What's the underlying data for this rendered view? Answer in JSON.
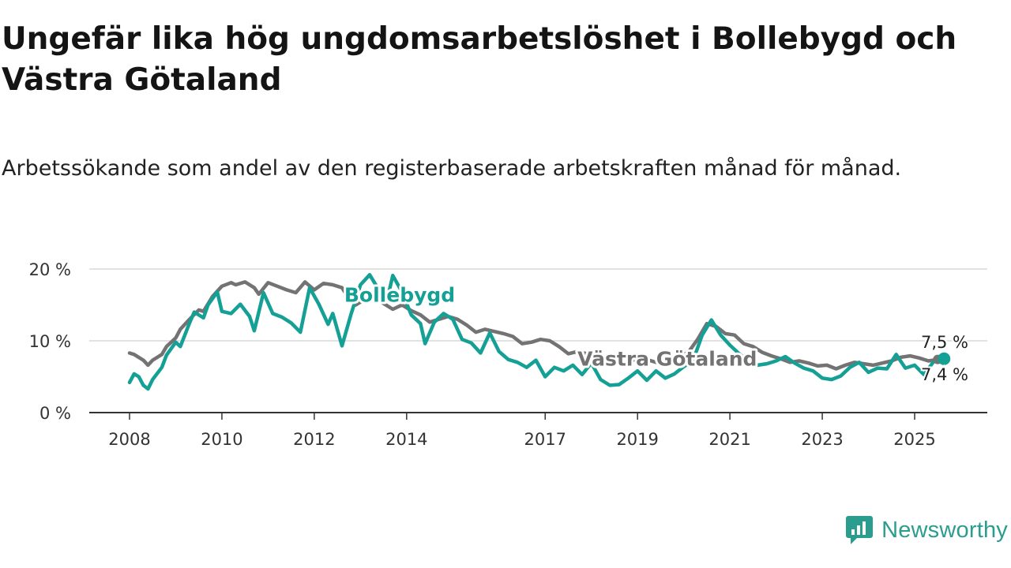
{
  "title": "Ungefär lika hög ungdomsarbetslöshet i Bollebygd och Västra Götaland",
  "subtitle": "Arbetssökande som andel av den registerbaserade arbetskraften månad för månad.",
  "brand": {
    "name": "Newsworthy",
    "icon": "newsworthy-logo-icon",
    "color": "#2a9d8f"
  },
  "chart_data": {
    "type": "line",
    "title": "Ungefär lika hög ungdomsarbetslöshet i Bollebygd och Västra Götaland",
    "subtitle": "Arbetssökande som andel av den registerbaserade arbetskraften månad för månad.",
    "xlabel": "",
    "ylabel": "",
    "xlim": [
      2007.9,
      2025.8
    ],
    "ylim": [
      0,
      20
    ],
    "x_ticks": [
      2008,
      2010,
      2012,
      2014,
      2017,
      2019,
      2021,
      2023,
      2025
    ],
    "x_tick_labels": [
      "2008",
      "2010",
      "2012",
      "2014",
      "2017",
      "2019",
      "2021",
      "2023",
      "2025"
    ],
    "y_ticks": [
      0,
      10,
      20
    ],
    "y_tick_labels": [
      "0 %",
      "10 %",
      "20 %"
    ],
    "grid": "horizontal",
    "series": [
      {
        "name": "Västra Götaland",
        "color": "#737373",
        "label": "Västra Götaland",
        "end_label": "7,4 %",
        "points": [
          [
            2008.0,
            8.3
          ],
          [
            2008.1,
            8.1
          ],
          [
            2008.3,
            7.3
          ],
          [
            2008.4,
            6.6
          ],
          [
            2008.5,
            7.3
          ],
          [
            2008.7,
            8.1
          ],
          [
            2008.8,
            9.2
          ],
          [
            2009.0,
            10.4
          ],
          [
            2009.1,
            11.6
          ],
          [
            2009.3,
            13.0
          ],
          [
            2009.5,
            14.3
          ],
          [
            2009.6,
            14.1
          ],
          [
            2009.8,
            16.2
          ],
          [
            2010.0,
            17.6
          ],
          [
            2010.2,
            18.1
          ],
          [
            2010.3,
            17.8
          ],
          [
            2010.5,
            18.2
          ],
          [
            2010.7,
            17.4
          ],
          [
            2010.8,
            16.5
          ],
          [
            2011.0,
            18.1
          ],
          [
            2011.2,
            17.6
          ],
          [
            2011.4,
            17.1
          ],
          [
            2011.6,
            16.7
          ],
          [
            2011.8,
            18.2
          ],
          [
            2012.0,
            17.1
          ],
          [
            2012.2,
            18.0
          ],
          [
            2012.4,
            17.8
          ],
          [
            2012.6,
            17.4
          ],
          [
            2012.7,
            16.4
          ],
          [
            2012.9,
            15.0
          ],
          [
            2013.1,
            15.8
          ],
          [
            2013.3,
            16.0
          ],
          [
            2013.5,
            15.2
          ],
          [
            2013.7,
            14.4
          ],
          [
            2013.9,
            15.0
          ],
          [
            2014.1,
            14.2
          ],
          [
            2014.3,
            13.6
          ],
          [
            2014.5,
            12.6
          ],
          [
            2014.7,
            13.0
          ],
          [
            2014.9,
            13.4
          ],
          [
            2015.1,
            13.0
          ],
          [
            2015.3,
            12.2
          ],
          [
            2015.5,
            11.2
          ],
          [
            2015.7,
            11.6
          ],
          [
            2015.9,
            11.3
          ],
          [
            2016.1,
            11.0
          ],
          [
            2016.3,
            10.6
          ],
          [
            2016.5,
            9.6
          ],
          [
            2016.7,
            9.8
          ],
          [
            2016.9,
            10.2
          ],
          [
            2017.1,
            10.0
          ],
          [
            2017.3,
            9.2
          ],
          [
            2017.5,
            8.2
          ],
          [
            2017.7,
            8.5
          ],
          [
            2017.9,
            8.2
          ],
          [
            2018.1,
            7.8
          ],
          [
            2018.3,
            7.6
          ],
          [
            2018.5,
            7.5
          ],
          [
            2018.7,
            7.8
          ],
          [
            2018.9,
            7.3
          ],
          [
            2019.1,
            7.5
          ],
          [
            2019.3,
            7.2
          ],
          [
            2019.5,
            6.8
          ],
          [
            2019.7,
            7.2
          ],
          [
            2019.9,
            7.8
          ],
          [
            2020.1,
            8.4
          ],
          [
            2020.3,
            10.2
          ],
          [
            2020.5,
            12.4
          ],
          [
            2020.7,
            12.0
          ],
          [
            2020.9,
            11.0
          ],
          [
            2021.1,
            10.8
          ],
          [
            2021.3,
            9.6
          ],
          [
            2021.5,
            9.2
          ],
          [
            2021.7,
            8.4
          ],
          [
            2021.9,
            7.9
          ],
          [
            2022.1,
            7.5
          ],
          [
            2022.3,
            7.0
          ],
          [
            2022.5,
            7.2
          ],
          [
            2022.7,
            6.9
          ],
          [
            2022.9,
            6.5
          ],
          [
            2023.1,
            6.6
          ],
          [
            2023.3,
            6.1
          ],
          [
            2023.5,
            6.6
          ],
          [
            2023.7,
            7.0
          ],
          [
            2023.9,
            6.8
          ],
          [
            2024.1,
            6.6
          ],
          [
            2024.3,
            6.9
          ],
          [
            2024.5,
            7.2
          ],
          [
            2024.7,
            7.7
          ],
          [
            2024.9,
            7.9
          ],
          [
            2025.1,
            7.6
          ],
          [
            2025.3,
            7.2
          ],
          [
            2025.5,
            7.4
          ]
        ]
      },
      {
        "name": "Bollebygd",
        "color": "#14a095",
        "label": "Bollebygd",
        "end_label": "7,5 %",
        "points": [
          [
            2008.0,
            4.2
          ],
          [
            2008.1,
            5.4
          ],
          [
            2008.2,
            5.0
          ],
          [
            2008.3,
            3.8
          ],
          [
            2008.4,
            3.3
          ],
          [
            2008.5,
            4.6
          ],
          [
            2008.7,
            6.3
          ],
          [
            2008.8,
            8.0
          ],
          [
            2009.0,
            9.8
          ],
          [
            2009.1,
            9.2
          ],
          [
            2009.3,
            12.5
          ],
          [
            2009.4,
            14.0
          ],
          [
            2009.6,
            13.2
          ],
          [
            2009.7,
            15.0
          ],
          [
            2009.9,
            16.8
          ],
          [
            2010.0,
            14.1
          ],
          [
            2010.2,
            13.8
          ],
          [
            2010.4,
            15.1
          ],
          [
            2010.6,
            13.4
          ],
          [
            2010.7,
            11.4
          ],
          [
            2010.9,
            16.7
          ],
          [
            2011.1,
            13.8
          ],
          [
            2011.3,
            13.3
          ],
          [
            2011.5,
            12.5
          ],
          [
            2011.7,
            11.2
          ],
          [
            2011.9,
            17.4
          ],
          [
            2012.1,
            15.1
          ],
          [
            2012.3,
            12.3
          ],
          [
            2012.4,
            13.8
          ],
          [
            2012.6,
            9.3
          ],
          [
            2012.8,
            13.8
          ],
          [
            2013.0,
            17.8
          ],
          [
            2013.2,
            19.2
          ],
          [
            2013.4,
            17.1
          ],
          [
            2013.6,
            16.3
          ],
          [
            2013.7,
            19.1
          ],
          [
            2013.9,
            16.8
          ],
          [
            2014.1,
            13.6
          ],
          [
            2014.3,
            12.4
          ],
          [
            2014.4,
            9.6
          ],
          [
            2014.6,
            12.6
          ],
          [
            2014.8,
            13.8
          ],
          [
            2015.0,
            13.0
          ],
          [
            2015.2,
            10.2
          ],
          [
            2015.4,
            9.7
          ],
          [
            2015.6,
            8.3
          ],
          [
            2015.8,
            11.1
          ],
          [
            2016.0,
            8.5
          ],
          [
            2016.2,
            7.4
          ],
          [
            2016.4,
            7.0
          ],
          [
            2016.6,
            6.3
          ],
          [
            2016.8,
            7.3
          ],
          [
            2017.0,
            5.0
          ],
          [
            2017.2,
            6.3
          ],
          [
            2017.4,
            5.8
          ],
          [
            2017.6,
            6.6
          ],
          [
            2017.8,
            5.3
          ],
          [
            2018.0,
            6.9
          ],
          [
            2018.2,
            4.6
          ],
          [
            2018.4,
            3.8
          ],
          [
            2018.6,
            3.9
          ],
          [
            2018.8,
            4.8
          ],
          [
            2019.0,
            5.8
          ],
          [
            2019.2,
            4.5
          ],
          [
            2019.4,
            5.8
          ],
          [
            2019.6,
            4.8
          ],
          [
            2019.8,
            5.4
          ],
          [
            2020.0,
            6.4
          ],
          [
            2020.2,
            7.2
          ],
          [
            2020.4,
            10.8
          ],
          [
            2020.6,
            12.9
          ],
          [
            2020.8,
            10.8
          ],
          [
            2021.0,
            9.4
          ],
          [
            2021.2,
            8.2
          ],
          [
            2021.4,
            7.1
          ],
          [
            2021.6,
            6.6
          ],
          [
            2021.8,
            6.8
          ],
          [
            2022.0,
            7.2
          ],
          [
            2022.2,
            7.8
          ],
          [
            2022.4,
            6.9
          ],
          [
            2022.6,
            6.2
          ],
          [
            2022.8,
            5.8
          ],
          [
            2023.0,
            4.8
          ],
          [
            2023.2,
            4.6
          ],
          [
            2023.4,
            5.1
          ],
          [
            2023.6,
            6.3
          ],
          [
            2023.8,
            7.0
          ],
          [
            2024.0,
            5.6
          ],
          [
            2024.2,
            6.2
          ],
          [
            2024.4,
            6.1
          ],
          [
            2024.6,
            8.1
          ],
          [
            2024.8,
            6.2
          ],
          [
            2025.0,
            6.6
          ],
          [
            2025.2,
            5.3
          ],
          [
            2025.4,
            7.0
          ],
          [
            2025.5,
            7.5
          ]
        ]
      }
    ]
  }
}
